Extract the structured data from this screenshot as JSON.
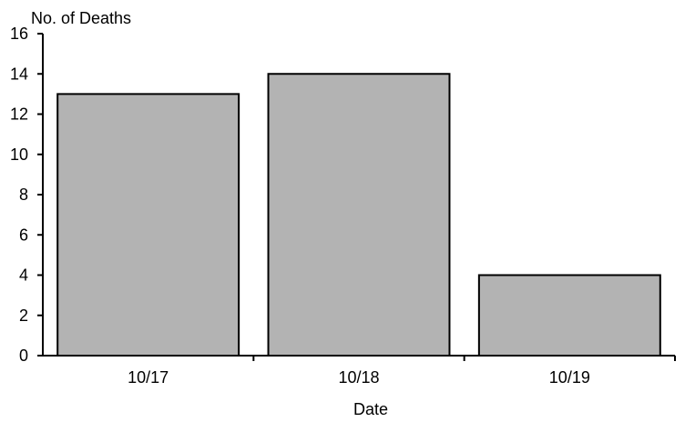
{
  "chart_data": {
    "type": "bar",
    "title": "",
    "xlabel": "Date",
    "ylabel": "No. of Deaths",
    "categories": [
      "10/17",
      "10/18",
      "10/19"
    ],
    "values": [
      13,
      14,
      4
    ],
    "ylim": [
      0,
      16
    ],
    "yticks": [
      0,
      2,
      4,
      6,
      8,
      10,
      12,
      14,
      16
    ],
    "grid": false,
    "legend": "none",
    "bar_color": "#b3b3b3"
  }
}
